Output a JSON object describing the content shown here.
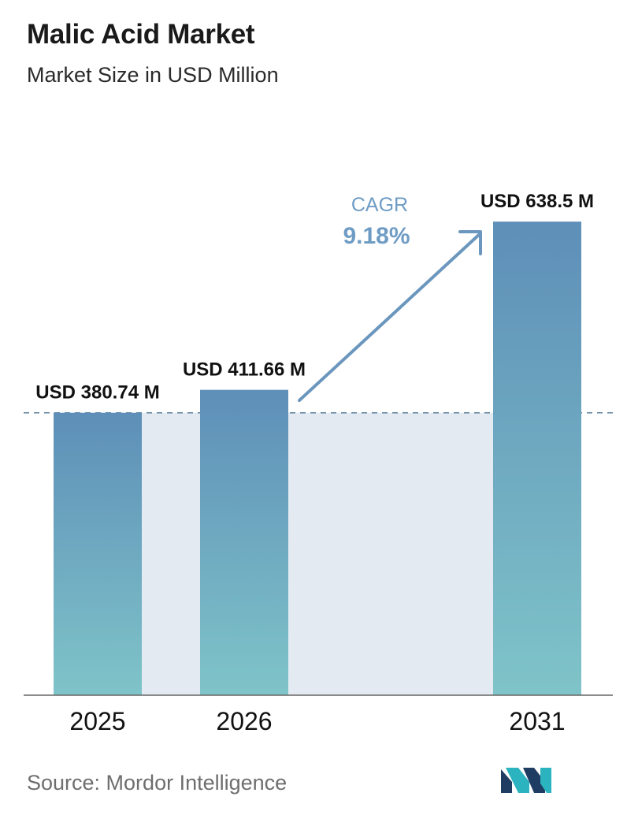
{
  "header": {
    "title": "Malic Acid Market",
    "subtitle": "Market Size in USD Million"
  },
  "source": "Source:  Mordor Intelligence",
  "cagr": {
    "label": "CAGR",
    "value": "9.18%"
  },
  "colors": {
    "bar_top": "#5e8fb8",
    "bar_bottom": "#7fc4c9",
    "band": "#e3eaf2",
    "dash": "#5b7f99",
    "arrow": "#6b96bd",
    "cagr_text": "#6f9cc4",
    "axis": "#666666"
  },
  "chart_data": {
    "type": "bar",
    "title": "Malic Acid Market",
    "subtitle": "Market Size in USD Million",
    "categories": [
      "2025",
      "2026",
      "2031"
    ],
    "values": [
      380.74,
      411.66,
      638.5
    ],
    "data_labels": [
      "USD 380.74 M",
      "USD 411.66 M",
      "USD 638.5 M"
    ],
    "ylim": [
      0,
      700
    ],
    "grid": false,
    "legend": "none",
    "annotation": "CAGR 9.18%"
  }
}
